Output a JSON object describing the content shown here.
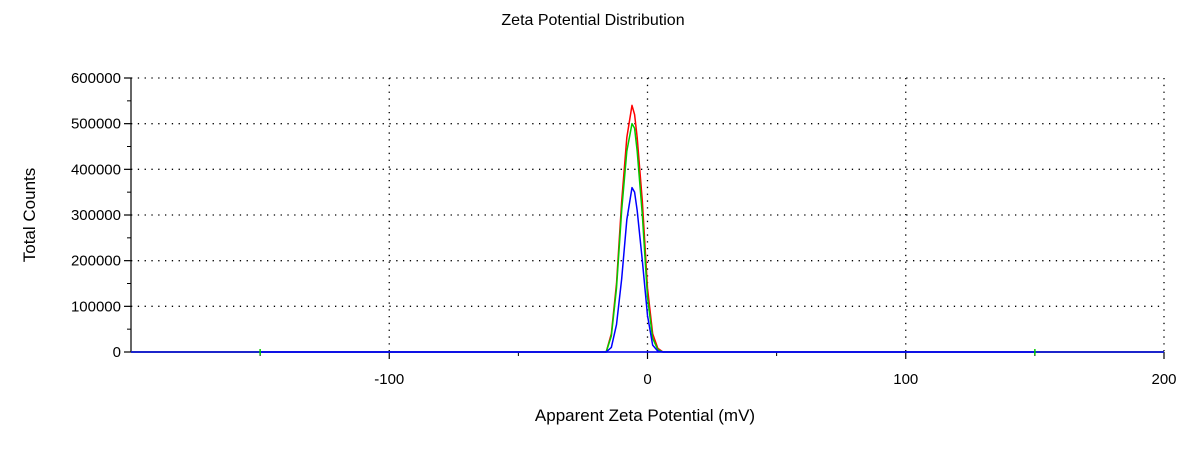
{
  "chart_data": {
    "type": "line",
    "title": "Zeta Potential Distribution",
    "xlabel": "Apparent Zeta Potential (mV)",
    "ylabel": "Total Counts",
    "xlim": [
      -200,
      200
    ],
    "ylim": [
      0,
      600000
    ],
    "x_ticks": [
      -100,
      0,
      100,
      200
    ],
    "x_minor_ticks": [
      -150,
      -50,
      50,
      150
    ],
    "y_ticks": [
      0,
      100000,
      200000,
      300000,
      400000,
      500000,
      600000
    ],
    "grid": true,
    "grid_style": "dotted",
    "series": [
      {
        "color": "#ff0000",
        "x": [
          -200,
          -16,
          -14,
          -12,
          -10,
          -8,
          -6,
          -5,
          -4,
          -2,
          0,
          2,
          4,
          6,
          -200,
          200
        ],
        "y": [
          0,
          0,
          40000,
          150000,
          330000,
          470000,
          540000,
          520000,
          470000,
          330000,
          140000,
          40000,
          8000,
          0,
          0,
          0
        ]
      },
      {
        "color": "#00cc00",
        "x": [
          -200,
          -16,
          -14,
          -12,
          -10,
          -8,
          -6,
          -5,
          -4,
          -2,
          0,
          2,
          4,
          6,
          200
        ],
        "y": [
          0,
          0,
          35000,
          140000,
          310000,
          440000,
          500000,
          490000,
          440000,
          300000,
          120000,
          30000,
          5000,
          0,
          0
        ]
      },
      {
        "color": "#0000ff",
        "x": [
          -200,
          -16,
          -14,
          -12,
          -10,
          -8,
          -6,
          -5,
          -4,
          -2,
          0,
          2,
          4,
          6,
          200
        ],
        "y": [
          0,
          0,
          10000,
          60000,
          160000,
          290000,
          360000,
          350000,
          310000,
          200000,
          80000,
          15000,
          2000,
          0,
          0
        ]
      }
    ]
  }
}
